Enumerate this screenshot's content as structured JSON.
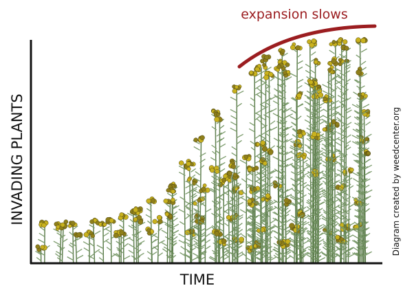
{
  "annotation": "expansion slows",
  "y_axis_label": "INVADING PLANTS",
  "x_axis_label": "TIME",
  "credit": "Diagram created by weedcenter.org"
}
